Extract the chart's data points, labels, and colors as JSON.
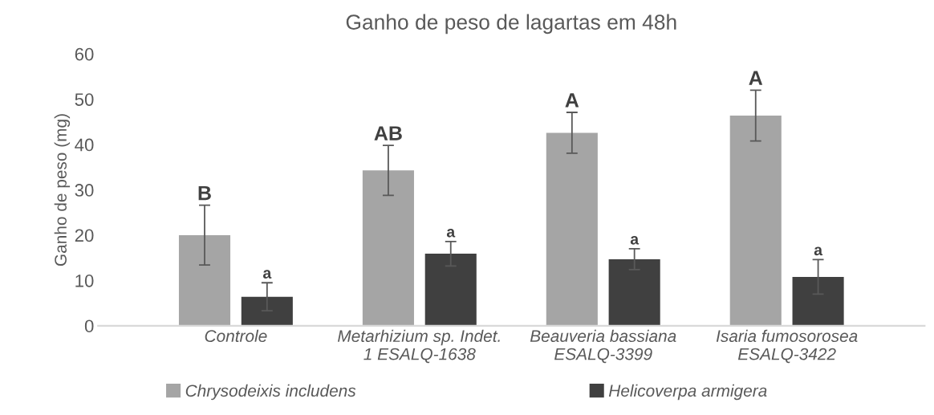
{
  "chart_data": {
    "type": "bar",
    "title": "Ganho de peso de lagartas em 48h",
    "ylabel": "Ganho de peso (mg)",
    "categories": [
      "Controle",
      "Metarhizium sp. Indet.\n1 ESALQ-1638",
      "Beauveria bassiana\nESALQ-3399",
      "Isaria fumosorosea\nESALQ-3422"
    ],
    "series": [
      {
        "name": "Chrysodeixis includens",
        "color": "#a5a5a5",
        "values": [
          20.0,
          34.3,
          42.6,
          46.4
        ],
        "errors": [
          6.6,
          5.5,
          4.5,
          5.6
        ]
      },
      {
        "name": "Helicoverpa armigera",
        "color": "#404040",
        "values": [
          6.4,
          15.9,
          14.7,
          10.8
        ],
        "errors": [
          3.1,
          2.7,
          2.3,
          3.8
        ]
      }
    ],
    "annotations": [
      "B",
      "a",
      "AB",
      "a",
      "A",
      "a",
      "A",
      "a"
    ],
    "ylim": [
      0,
      60
    ],
    "yticks": [
      0,
      10,
      20,
      30,
      40,
      50,
      60
    ],
    "grid": false,
    "legend": "bottom"
  }
}
